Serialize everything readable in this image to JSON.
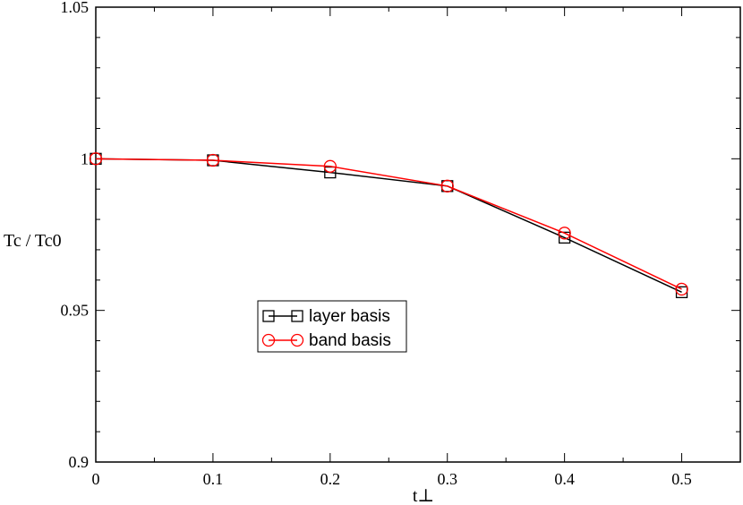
{
  "chart_data": {
    "type": "line",
    "title": "",
    "xlabel": "t⊥",
    "ylabel": "Tc / Tc0",
    "xlim": [
      0,
      0.55
    ],
    "ylim": [
      0.9,
      1.05
    ],
    "x_ticks": [
      "0",
      "0.1",
      "0.2",
      "0.3",
      "0.4",
      "0.5"
    ],
    "y_ticks": [
      "0.9",
      "0.95",
      "1",
      "1.05"
    ],
    "grid": false,
    "legend_position": "center-left",
    "series": [
      {
        "name": "layer basis",
        "color": "#000000",
        "marker": "square",
        "x": [
          0,
          0.1,
          0.2,
          0.3,
          0.4,
          0.5
        ],
        "y": [
          1.0,
          0.9995,
          0.9955,
          0.991,
          0.974,
          0.956
        ]
      },
      {
        "name": "band basis",
        "color": "#ff0000",
        "marker": "circle",
        "x": [
          0,
          0.1,
          0.2,
          0.3,
          0.4,
          0.5
        ],
        "y": [
          1.0,
          0.9995,
          0.9975,
          0.991,
          0.9755,
          0.957
        ]
      }
    ]
  }
}
